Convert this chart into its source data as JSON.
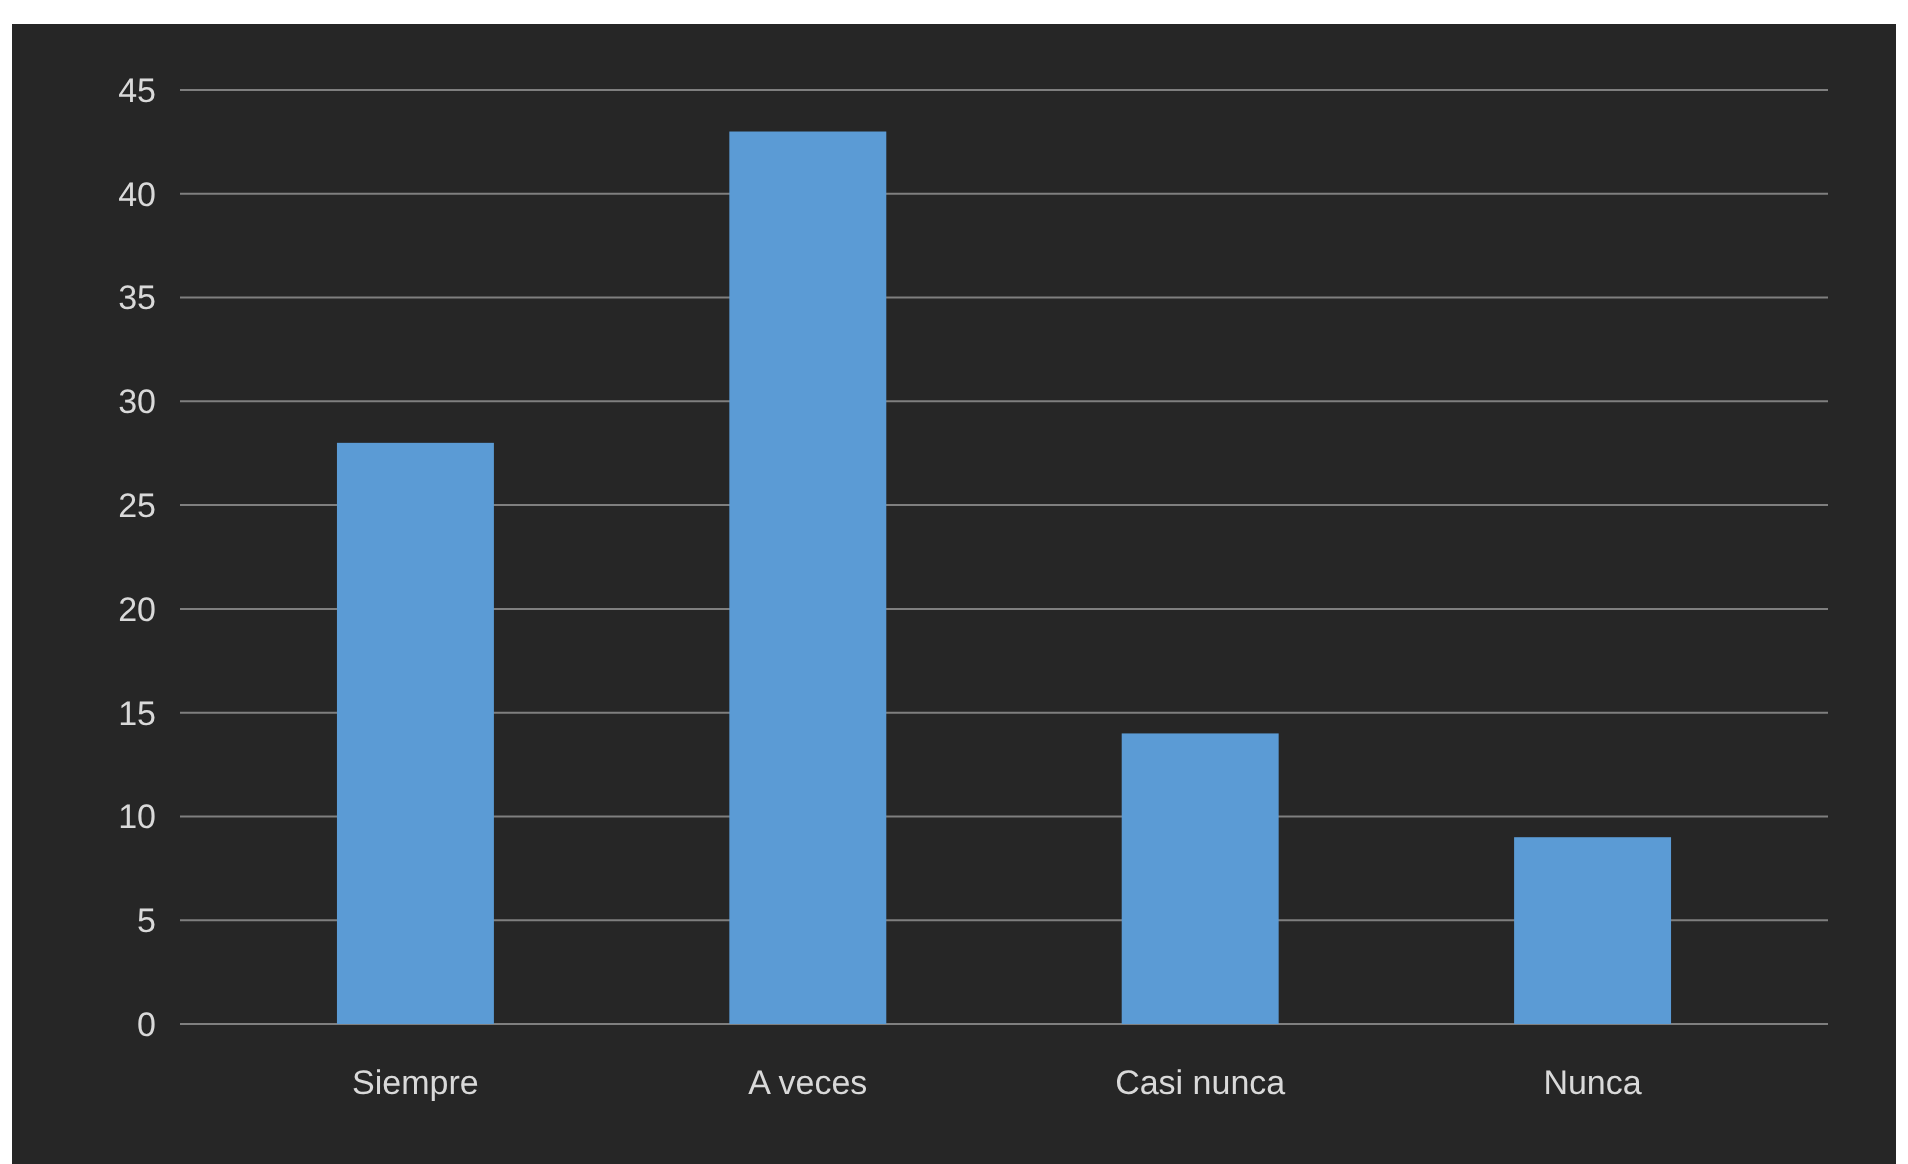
{
  "chart_data": {
    "type": "bar",
    "categories": [
      "Siempre",
      "A veces",
      "Casi nunca",
      "Nunca"
    ],
    "values": [
      28,
      43,
      14,
      9
    ],
    "color": "#5b9bd5",
    "ylim": [
      0,
      45
    ],
    "yticks": [
      0,
      5,
      10,
      15,
      20,
      25,
      30,
      35,
      40,
      45
    ],
    "grid": true
  }
}
